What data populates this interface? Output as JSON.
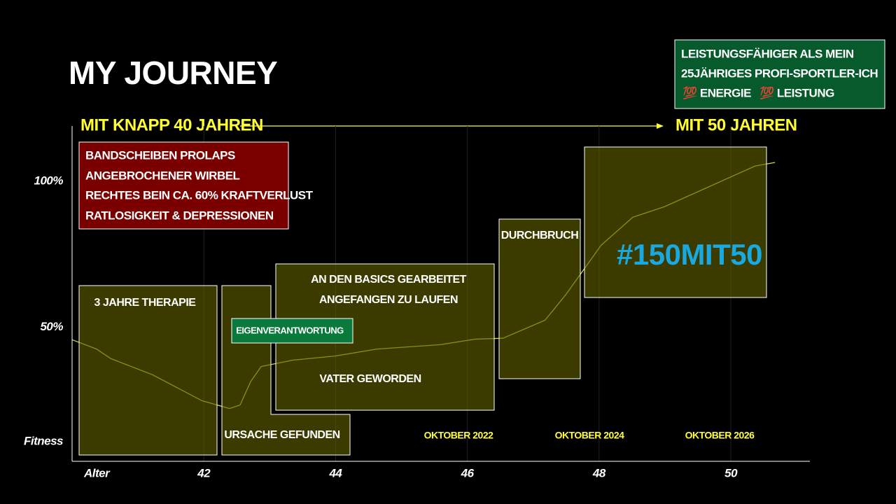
{
  "title": "MY JOURNEY",
  "summary": [
    "LEISTUNGSFÄHIGER ALS MEIN",
    "25JÄHRIGES PROFI-SPORTLER-ICH",
    "💯 ENERGIE",
    "💯 LEISTUNG"
  ],
  "timeline": {
    "start": "MIT KNAPP 40 JAHREN",
    "end": "MIT 50 JAHREN"
  },
  "problems": [
    "BANDSCHEIBEN PROLAPS",
    "ANGEBROCHENER WIRBEL",
    "RECHTES BEIN CA. 60% KRAFTVERLUST",
    "RATLOSIGKEIT & DEPRESSIONEN"
  ],
  "phases": {
    "therapy": "3 JAHRE THERAPIE",
    "cause": "URSACHE GEFUNDEN",
    "responsibility": "EIGENVERANTWORTUNG",
    "basics": [
      "AN DEN BASICS GEARBEITET",
      "ANGEFANGEN ZU LAUFEN"
    ],
    "father": "VATER GEWORDEN",
    "breakthrough": "DURCHBRUCH",
    "goal": "#150MIT50"
  },
  "dates": [
    "OKTOBER 2022",
    "OKTOBER 2024",
    "OKTOBER 2026"
  ],
  "chart_data": {
    "type": "line",
    "x_label": "Alter",
    "y_label": "Fitness",
    "x": [
      40.0,
      40.37,
      40.59,
      41.22,
      41.97,
      42.39,
      42.55,
      42.71,
      42.87,
      43.35,
      43.99,
      44.63,
      45.59,
      46.12,
      46.54,
      47.18,
      47.5,
      48.03,
      48.51,
      48.99,
      49.73,
      50.37,
      50.67
    ],
    "values": [
      45.7,
      42.5,
      39.2,
      33.7,
      24.8,
      22.1,
      23.3,
      31.3,
      36.5,
      38.7,
      40.1,
      42.5,
      44.0,
      45.9,
      46.2,
      52.4,
      61.3,
      78.1,
      87.7,
      91.3,
      98.8,
      105.3,
      106.5
    ],
    "color": "#d8d840",
    "xlim": [
      40,
      51.2
    ],
    "ylim": [
      4,
      119
    ],
    "xticks": [
      42,
      44,
      46,
      48,
      50
    ],
    "yticks": [
      {
        "value": 50,
        "label": "50%"
      },
      {
        "value": 100,
        "label": "100%"
      }
    ],
    "grid": true
  }
}
